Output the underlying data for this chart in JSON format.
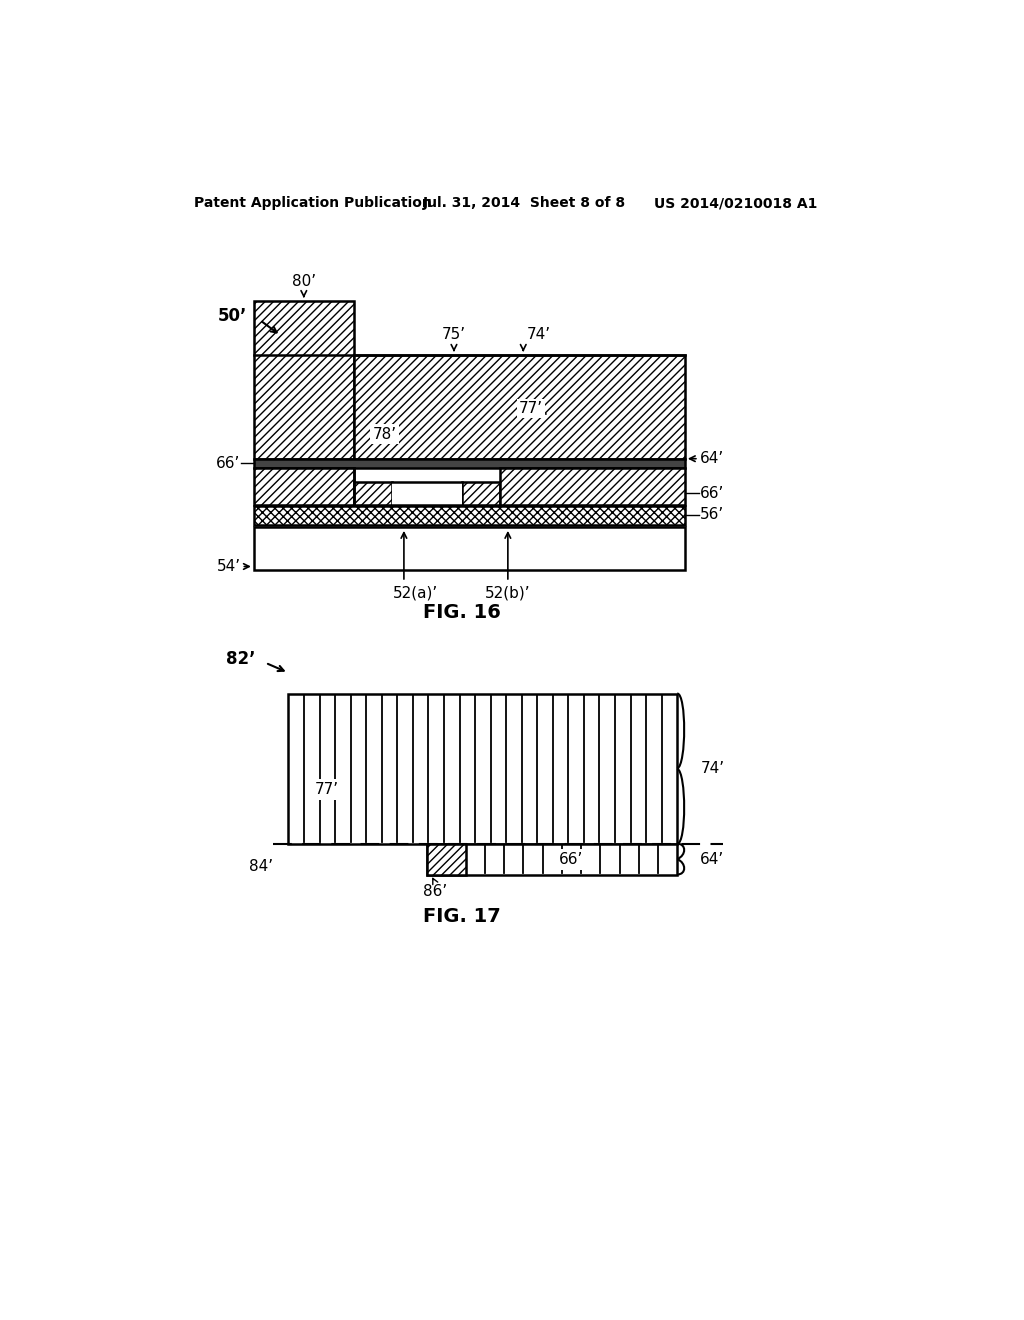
{
  "bg_color": "#ffffff",
  "header_left": "Patent Application Publication",
  "header_mid": "Jul. 31, 2014  Sheet 8 of 8",
  "header_right": "US 2014/0210018 A1",
  "fig16_label": "FIG. 16",
  "fig17_label": "FIG. 17",
  "label_50": "50’",
  "label_80": "80’",
  "label_75": "75’",
  "label_74_fig16": "74’",
  "label_77_fig16": "77’",
  "label_78": "78’",
  "label_64_fig16": "64’",
  "label_66a": "66’",
  "label_66b": "66’",
  "label_56": "56’",
  "label_54": "54’",
  "label_52a": "52(a)’",
  "label_52b": "52(b)’",
  "label_82": "82’",
  "label_77_fig17": "77’",
  "label_74_fig17": "74’",
  "label_64_fig17": "64’",
  "label_84": "84’",
  "label_86": "86’",
  "label_66_fig17": "66’"
}
